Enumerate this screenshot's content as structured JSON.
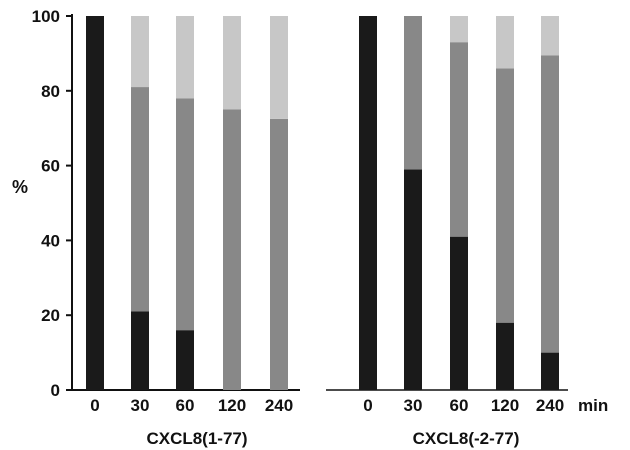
{
  "chart_data": {
    "type": "bar",
    "subtype": "stacked-100",
    "ylabel": "%",
    "ylim": [
      0,
      100
    ],
    "yticks": [
      "0",
      "20",
      "40",
      "60",
      "80",
      "100"
    ],
    "x_unit_label": "min",
    "grid": false,
    "legend": "none",
    "colors": {
      "bottom": "#1a1a1a",
      "middle": "#888888",
      "top": "#c7c7c7"
    },
    "groups": [
      {
        "label": "CXCL8(1-77)",
        "categories": [
          "0",
          "30",
          "60",
          "120",
          "240"
        ],
        "segments": [
          {
            "role": "bottom",
            "values": [
              100,
              21,
              16,
              0,
              0
            ]
          },
          {
            "role": "middle",
            "values": [
              0,
              60,
              62,
              75,
              72.5
            ]
          },
          {
            "role": "top",
            "values": [
              0,
              19,
              22,
              25,
              27.5
            ]
          }
        ]
      },
      {
        "label": "CXCL8(-2-77)",
        "categories": [
          "0",
          "30",
          "60",
          "120",
          "240"
        ],
        "segments": [
          {
            "role": "bottom",
            "values": [
              100,
              59,
              41,
              18,
              10
            ]
          },
          {
            "role": "middle",
            "values": [
              0,
              41,
              52,
              68,
              79.5
            ]
          },
          {
            "role": "top",
            "values": [
              0,
              0,
              7,
              14,
              10.5
            ]
          }
        ]
      }
    ]
  }
}
